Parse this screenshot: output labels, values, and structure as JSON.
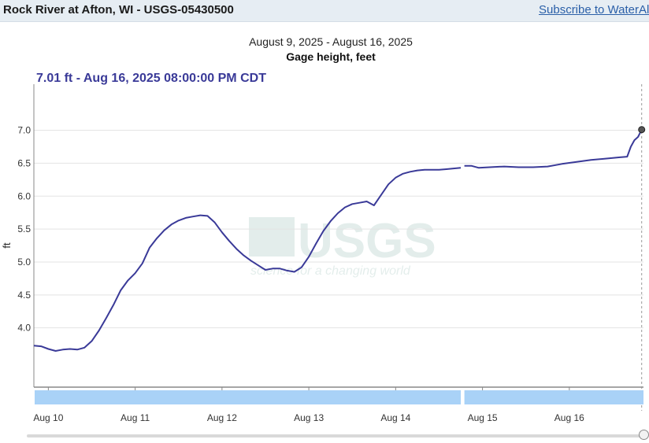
{
  "header": {
    "title": "Rock River at Afton, WI - USGS-05430500",
    "subscribe_label": "Subscribe to WaterAlert"
  },
  "watermark": {
    "brand": "USGS",
    "tagline": "science for a changing world"
  },
  "colors": {
    "series": "#3a3a98",
    "navigator_band": "#a9d2f7",
    "header_bg": "#e6edf3",
    "link": "#2a5fa8"
  },
  "chart_data": {
    "type": "line",
    "subtitle": "August 9, 2025 - August 16, 2025",
    "title": "Gage height, feet",
    "ylabel": "ft",
    "readout": "7.01 ft - Aug 16, 2025 08:00:00 PM CDT",
    "ylim": [
      3.1,
      7.7
    ],
    "yticks": [
      4.0,
      4.5,
      5.0,
      5.5,
      6.0,
      6.5,
      7.0
    ],
    "xlim": [
      "2025-08-09T20:00",
      "2025-08-16T20:30"
    ],
    "xticks": [
      {
        "date": "2025-08-10",
        "label": "Aug 10"
      },
      {
        "date": "2025-08-11",
        "label": "Aug 11"
      },
      {
        "date": "2025-08-12",
        "label": "Aug 12"
      },
      {
        "date": "2025-08-13",
        "label": "Aug 13"
      },
      {
        "date": "2025-08-14",
        "label": "Aug 14"
      },
      {
        "date": "2025-08-15",
        "label": "Aug 15"
      },
      {
        "date": "2025-08-16",
        "label": "Aug 16"
      }
    ],
    "grid": true,
    "series": [
      {
        "segments": [
          [
            [
              "2025-08-09T20:00",
              3.73
            ],
            [
              "2025-08-09T22:00",
              3.72
            ],
            [
              "2025-08-10T00:00",
              3.68
            ],
            [
              "2025-08-10T02:00",
              3.65
            ],
            [
              "2025-08-10T04:00",
              3.67
            ],
            [
              "2025-08-10T06:00",
              3.68
            ],
            [
              "2025-08-10T08:00",
              3.67
            ],
            [
              "2025-08-10T10:00",
              3.7
            ],
            [
              "2025-08-10T12:00",
              3.8
            ],
            [
              "2025-08-10T14:00",
              3.96
            ],
            [
              "2025-08-10T16:00",
              4.15
            ],
            [
              "2025-08-10T18:00",
              4.35
            ],
            [
              "2025-08-10T20:00",
              4.57
            ],
            [
              "2025-08-10T22:00",
              4.72
            ],
            [
              "2025-08-11T00:00",
              4.83
            ],
            [
              "2025-08-11T02:00",
              4.98
            ],
            [
              "2025-08-11T04:00",
              5.22
            ],
            [
              "2025-08-11T06:00",
              5.36
            ],
            [
              "2025-08-11T08:00",
              5.48
            ],
            [
              "2025-08-11T10:00",
              5.57
            ],
            [
              "2025-08-11T12:00",
              5.63
            ],
            [
              "2025-08-11T14:00",
              5.67
            ],
            [
              "2025-08-11T16:00",
              5.69
            ],
            [
              "2025-08-11T18:00",
              5.71
            ],
            [
              "2025-08-11T20:00",
              5.7
            ],
            [
              "2025-08-11T22:00",
              5.6
            ],
            [
              "2025-08-12T00:00",
              5.45
            ],
            [
              "2025-08-12T02:00",
              5.32
            ],
            [
              "2025-08-12T04:00",
              5.2
            ],
            [
              "2025-08-12T06:00",
              5.1
            ],
            [
              "2025-08-12T08:00",
              5.02
            ],
            [
              "2025-08-12T10:00",
              4.95
            ],
            [
              "2025-08-12T12:00",
              4.88
            ],
            [
              "2025-08-12T14:00",
              4.9
            ],
            [
              "2025-08-12T16:00",
              4.9
            ],
            [
              "2025-08-12T18:00",
              4.87
            ],
            [
              "2025-08-12T20:00",
              4.85
            ],
            [
              "2025-08-12T22:00",
              4.92
            ],
            [
              "2025-08-13T00:00",
              5.08
            ],
            [
              "2025-08-13T02:00",
              5.28
            ],
            [
              "2025-08-13T04:00",
              5.47
            ],
            [
              "2025-08-13T06:00",
              5.62
            ],
            [
              "2025-08-13T08:00",
              5.74
            ],
            [
              "2025-08-13T10:00",
              5.83
            ],
            [
              "2025-08-13T12:00",
              5.88
            ],
            [
              "2025-08-13T14:00",
              5.9
            ],
            [
              "2025-08-13T16:00",
              5.92
            ],
            [
              "2025-08-13T18:00",
              5.86
            ],
            [
              "2025-08-13T20:00",
              6.02
            ],
            [
              "2025-08-13T22:00",
              6.18
            ],
            [
              "2025-08-14T00:00",
              6.28
            ],
            [
              "2025-08-14T02:00",
              6.34
            ],
            [
              "2025-08-14T04:00",
              6.37
            ],
            [
              "2025-08-14T06:00",
              6.39
            ],
            [
              "2025-08-14T08:00",
              6.4
            ],
            [
              "2025-08-14T10:00",
              6.4
            ],
            [
              "2025-08-14T12:00",
              6.4
            ],
            [
              "2025-08-14T14:00",
              6.41
            ],
            [
              "2025-08-14T16:00",
              6.42
            ],
            [
              "2025-08-14T18:00",
              6.43
            ]
          ],
          [
            [
              "2025-08-14T19:00",
              6.46
            ],
            [
              "2025-08-14T21:00",
              6.46
            ],
            [
              "2025-08-14T23:00",
              6.43
            ],
            [
              "2025-08-15T02:00",
              6.44
            ],
            [
              "2025-08-15T06:00",
              6.45
            ],
            [
              "2025-08-15T10:00",
              6.44
            ],
            [
              "2025-08-15T14:00",
              6.44
            ],
            [
              "2025-08-15T18:00",
              6.45
            ],
            [
              "2025-08-15T22:00",
              6.49
            ],
            [
              "2025-08-16T02:00",
              6.52
            ],
            [
              "2025-08-16T06:00",
              6.55
            ],
            [
              "2025-08-16T10:00",
              6.57
            ],
            [
              "2025-08-16T14:00",
              6.59
            ],
            [
              "2025-08-16T16:00",
              6.6
            ],
            [
              "2025-08-16T17:00",
              6.75
            ],
            [
              "2025-08-16T18:00",
              6.85
            ],
            [
              "2025-08-16T19:00",
              6.9
            ],
            [
              "2025-08-16T20:00",
              7.01
            ]
          ]
        ]
      }
    ],
    "highlight": {
      "x": "2025-08-16T20:00",
      "y": 7.01
    },
    "navigator_gap": [
      "2025-08-14T18:00",
      "2025-08-14T19:00"
    ]
  }
}
